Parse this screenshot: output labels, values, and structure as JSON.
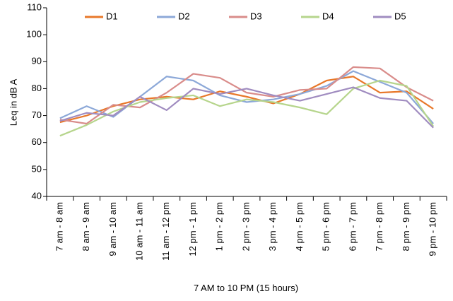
{
  "chart_data": {
    "type": "line",
    "y_label": "Leq in dB A",
    "x_label": "7 AM to 10 PM (15 hours)",
    "categories": [
      "7 am - 8 am",
      "8 am - 9 am",
      "9 am - 10 am",
      "10 am - 11 am",
      "11 am - 12 pm",
      "12 pm - 1 pm",
      "1 pm - 2 pm",
      "2 pm - 3 pm",
      "3 pm - 4 pm",
      "4 pm - 5 pm",
      "5 pm - 6 pm",
      "6 pm - 7 pm",
      "7 pm - 8 pm",
      "8 pm - 9 pm",
      "9 pm - 10 pm"
    ],
    "series": [
      {
        "name": "D1",
        "color": "#e8782a",
        "values": [
          67.5,
          70,
          73.5,
          76,
          77,
          76,
          79,
          77,
          74.5,
          78,
          83,
          84.5,
          78.5,
          79,
          72.5
        ]
      },
      {
        "name": "D2",
        "color": "#8ca8d8",
        "values": [
          69,
          73.5,
          69.5,
          77,
          84.5,
          83,
          77.5,
          75,
          76,
          78,
          81,
          86.5,
          82.5,
          78.5,
          67
        ]
      },
      {
        "name": "D3",
        "color": "#d98c8a",
        "values": [
          68.5,
          67,
          74,
          73,
          78.5,
          85.5,
          84,
          78.5,
          77,
          79.5,
          80,
          88,
          87.5,
          80.5,
          75.5
        ]
      },
      {
        "name": "D4",
        "color": "#b6d58c",
        "values": [
          62.5,
          66.5,
          71.5,
          75,
          76.5,
          77.5,
          73.5,
          76,
          75,
          73,
          70.5,
          80,
          83,
          81,
          66
        ]
      },
      {
        "name": "D5",
        "color": "#a08cc0",
        "values": [
          68,
          71,
          70,
          77,
          72,
          80,
          78,
          80,
          77.5,
          75.5,
          78,
          80.5,
          76.5,
          75.5,
          65.5
        ]
      }
    ],
    "ylim": [
      40,
      110
    ],
    "yticks": [
      40,
      50,
      60,
      70,
      80,
      90,
      100,
      110
    ],
    "legend": "top"
  }
}
